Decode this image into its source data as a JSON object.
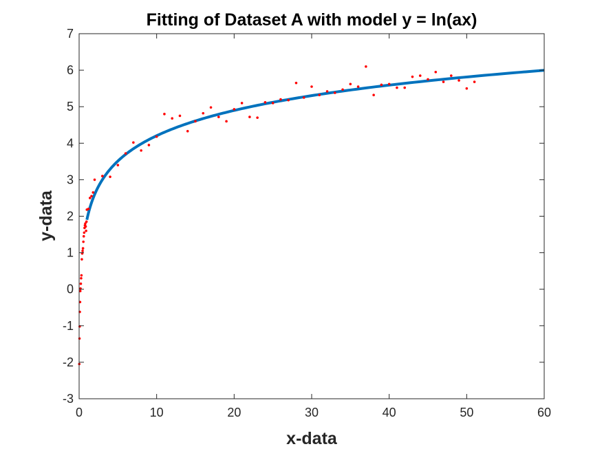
{
  "chart_data": {
    "type": "scatter",
    "title": "Fitting of Dataset A with model y = ln(ax)",
    "xlabel": "x-data",
    "ylabel": "y-data",
    "xlim": [
      0,
      60
    ],
    "ylim": [
      -3,
      7
    ],
    "xticks": [
      "0",
      "10",
      "20",
      "30",
      "40",
      "50",
      "60"
    ],
    "yticks": [
      "-3",
      "-2",
      "-1",
      "0",
      "1",
      "2",
      "3",
      "4",
      "5",
      "6",
      "7"
    ],
    "grid": false,
    "series": [
      {
        "kind": "scatter",
        "color": "#ff0000",
        "points": [
          [
            0.02,
            -2.05
          ],
          [
            0.05,
            -1.35
          ],
          [
            0.07,
            -1.02
          ],
          [
            0.09,
            -0.62
          ],
          [
            0.12,
            -0.35
          ],
          [
            0.15,
            -0.05
          ],
          [
            0.18,
            0.02
          ],
          [
            0.22,
            0.15
          ],
          [
            0.26,
            0.3
          ],
          [
            0.3,
            0.38
          ],
          [
            0.35,
            0.82
          ],
          [
            0.4,
            0.98
          ],
          [
            0.45,
            1.05
          ],
          [
            0.5,
            1.12
          ],
          [
            0.55,
            1.3
          ],
          [
            0.6,
            1.45
          ],
          [
            0.65,
            1.55
          ],
          [
            0.7,
            1.68
          ],
          [
            0.75,
            1.75
          ],
          [
            0.8,
            1.8
          ],
          [
            0.85,
            1.72
          ],
          [
            0.9,
            1.6
          ],
          [
            0.95,
            1.85
          ],
          [
            1.0,
            2.18
          ],
          [
            1.2,
            2.2
          ],
          [
            1.4,
            2.5
          ],
          [
            1.6,
            2.55
          ],
          [
            1.8,
            2.65
          ],
          [
            2.0,
            3.0
          ],
          [
            3.0,
            3.1
          ],
          [
            4.0,
            3.08
          ],
          [
            5.0,
            3.4
          ],
          [
            6.0,
            3.72
          ],
          [
            7.0,
            4.02
          ],
          [
            8.0,
            3.8
          ],
          [
            9.0,
            3.95
          ],
          [
            10.0,
            4.18
          ],
          [
            11.0,
            4.8
          ],
          [
            12.0,
            4.68
          ],
          [
            13.0,
            4.75
          ],
          [
            14.0,
            4.33
          ],
          [
            15.0,
            4.6
          ],
          [
            16.0,
            4.82
          ],
          [
            17.0,
            4.98
          ],
          [
            18.0,
            4.72
          ],
          [
            19.0,
            4.6
          ],
          [
            20.0,
            4.93
          ],
          [
            21.0,
            5.1
          ],
          [
            22.0,
            4.72
          ],
          [
            23.0,
            4.7
          ],
          [
            24.0,
            5.12
          ],
          [
            25.0,
            5.1
          ],
          [
            26.0,
            5.2
          ],
          [
            27.0,
            5.18
          ],
          [
            28.0,
            5.65
          ],
          [
            29.0,
            5.25
          ],
          [
            30.0,
            5.55
          ],
          [
            31.0,
            5.32
          ],
          [
            32.0,
            5.42
          ],
          [
            33.0,
            5.38
          ],
          [
            34.0,
            5.47
          ],
          [
            35.0,
            5.62
          ],
          [
            36.0,
            5.55
          ],
          [
            37.0,
            6.1
          ],
          [
            38.0,
            5.32
          ],
          [
            39.0,
            5.6
          ],
          [
            40.0,
            5.62
          ],
          [
            41.0,
            5.52
          ],
          [
            42.0,
            5.52
          ],
          [
            43.0,
            5.82
          ],
          [
            44.0,
            5.85
          ],
          [
            45.0,
            5.75
          ],
          [
            46.0,
            5.95
          ],
          [
            47.0,
            5.68
          ],
          [
            48.0,
            5.85
          ],
          [
            49.0,
            5.72
          ],
          [
            50.0,
            5.5
          ],
          [
            51.0,
            5.68
          ]
        ]
      },
      {
        "kind": "line",
        "color": "#0072bd",
        "model": "y = ln(a*x)",
        "a": 6.7,
        "x_range": [
          1.0,
          60.0
        ]
      }
    ]
  }
}
